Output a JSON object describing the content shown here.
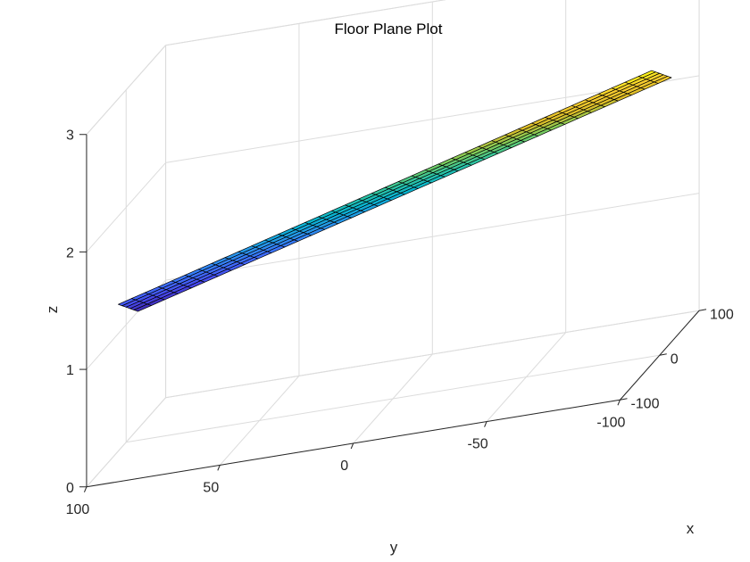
{
  "chart_data": {
    "type": "surface",
    "title": "Floor Plane Plot",
    "xlabel": "x",
    "ylabel": "y",
    "zlabel": "z",
    "xlim": [
      -100,
      100
    ],
    "ylim": [
      -100,
      100
    ],
    "zlim": [
      0,
      3
    ],
    "x_ticks": [
      "-100",
      "0",
      "100"
    ],
    "y_ticks": [
      "100",
      "50",
      "0",
      "-50",
      "-100"
    ],
    "z_ticks": [
      "0",
      "1",
      "2",
      "3"
    ],
    "grid": true,
    "colormap": "parula",
    "surface": {
      "x_range": [
        -20,
        30
      ],
      "y_range": [
        -100,
        100
      ],
      "x_count": 6,
      "y_count": 41,
      "corners": [
        {
          "x": 30,
          "y": 100,
          "z": 1.0
        },
        {
          "x": -20,
          "y": 100,
          "z": 1.25
        },
        {
          "x": 30,
          "y": -100,
          "z": 2.25
        },
        {
          "x": -20,
          "y": -100,
          "z": 2.5
        }
      ]
    }
  }
}
